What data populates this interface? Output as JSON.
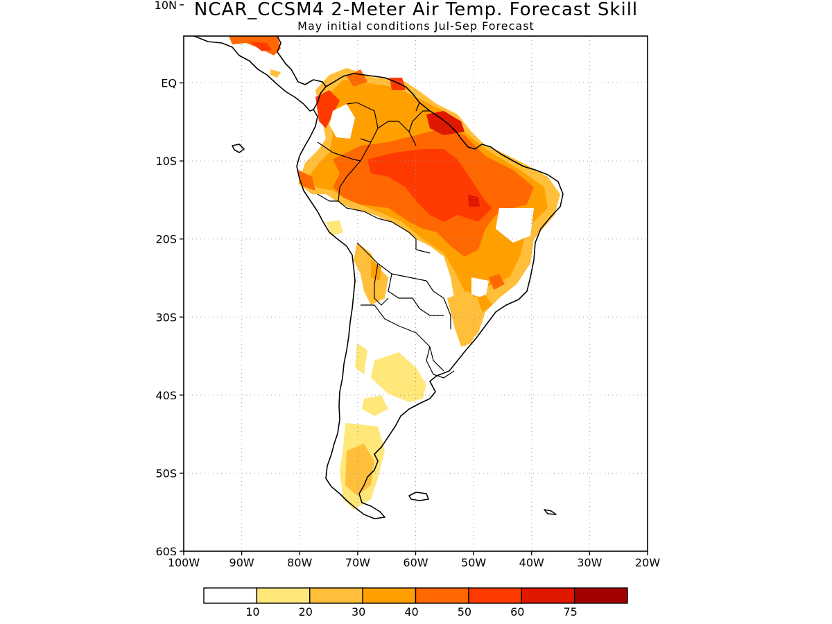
{
  "title": "NCAR_CCSM4 2-Meter Air Temp. Forecast Skill",
  "subtitle": "May initial conditions  Jul-Sep Forecast",
  "map": {
    "lon_range": [
      -100,
      -20
    ],
    "lat_range": [
      -60,
      6
    ],
    "lon_ticks": [
      {
        "v": -100,
        "label": "100W"
      },
      {
        "v": -90,
        "label": "90W"
      },
      {
        "v": -80,
        "label": "80W"
      },
      {
        "v": -70,
        "label": "70W"
      },
      {
        "v": -60,
        "label": "60W"
      },
      {
        "v": -50,
        "label": "50W"
      },
      {
        "v": -40,
        "label": "40W"
      },
      {
        "v": -30,
        "label": "30W"
      },
      {
        "v": -20,
        "label": "20W"
      }
    ],
    "lat_ticks": [
      {
        "v": 10,
        "label": "10N"
      },
      {
        "v": 0,
        "label": "EQ"
      },
      {
        "v": -10,
        "label": "10S"
      },
      {
        "v": -20,
        "label": "20S"
      },
      {
        "v": -30,
        "label": "30S"
      },
      {
        "v": -40,
        "label": "40S"
      },
      {
        "v": -50,
        "label": "50S"
      },
      {
        "v": -60,
        "label": "60S"
      }
    ],
    "grid": true
  },
  "colorbar": {
    "colors": [
      "#ffffff",
      "#ffe77a",
      "#ffbf3a",
      "#ffa000",
      "#ff6800",
      "#ff3a00",
      "#df1800",
      "#a30000"
    ],
    "labels": [
      "10",
      "20",
      "30",
      "40",
      "50",
      "60",
      "75"
    ]
  }
}
